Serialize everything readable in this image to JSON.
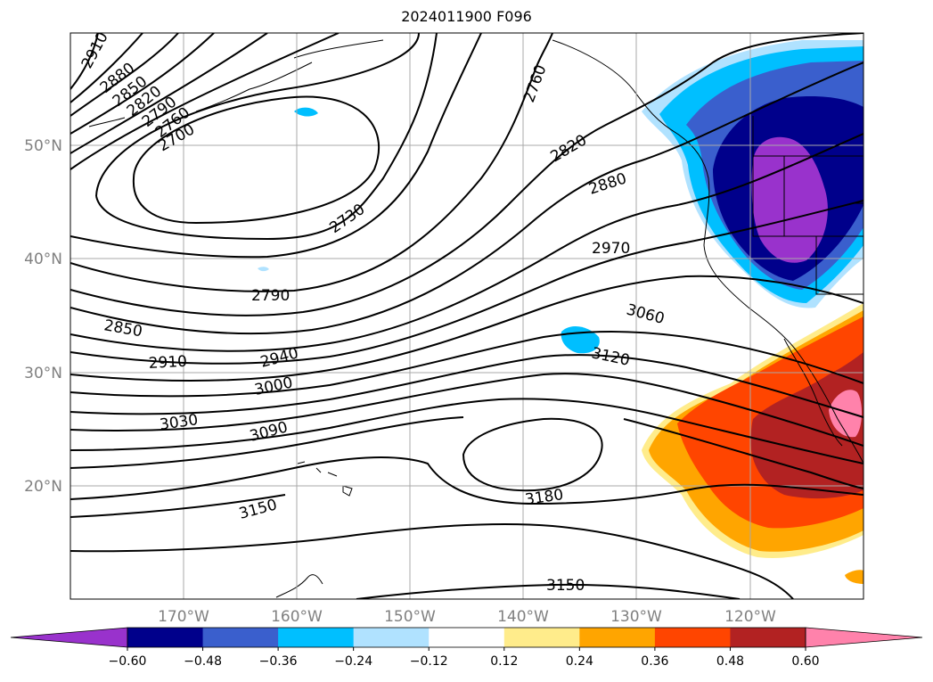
{
  "title": "2024011900 F096",
  "lat_labels": [
    "50°N",
    "40°N",
    "30°N",
    "20°N"
  ],
  "lon_labels": [
    "170°W",
    "160°W",
    "150°W",
    "140°W",
    "130°W",
    "120°W"
  ],
  "contour_labels": [
    "2910",
    "2880",
    "2850",
    "2820",
    "2790",
    "2760",
    "2700",
    "2730",
    "2760",
    "2820",
    "2880",
    "2970",
    "2790",
    "2850",
    "2910",
    "2940",
    "3000",
    "3030",
    "3090",
    "3060",
    "3120",
    "3150",
    "3180",
    "3150"
  ],
  "colorbar": {
    "tick_labels": [
      "−0.60",
      "−0.48",
      "−0.36",
      "−0.24",
      "−0.12",
      "0.12",
      "0.24",
      "0.36",
      "0.48",
      "0.60"
    ],
    "colors": [
      "#9932cc",
      "#00008b",
      "#3a5fcd",
      "#00bfff",
      "#b0e2ff",
      "#ffffff",
      "#ffec8b",
      "#ffa500",
      "#ff4500",
      "#b22222",
      "#ff82ab"
    ]
  },
  "colors": {
    "grid": "#a9a9a9",
    "contour": "#000000",
    "label_gray": "#808080"
  }
}
